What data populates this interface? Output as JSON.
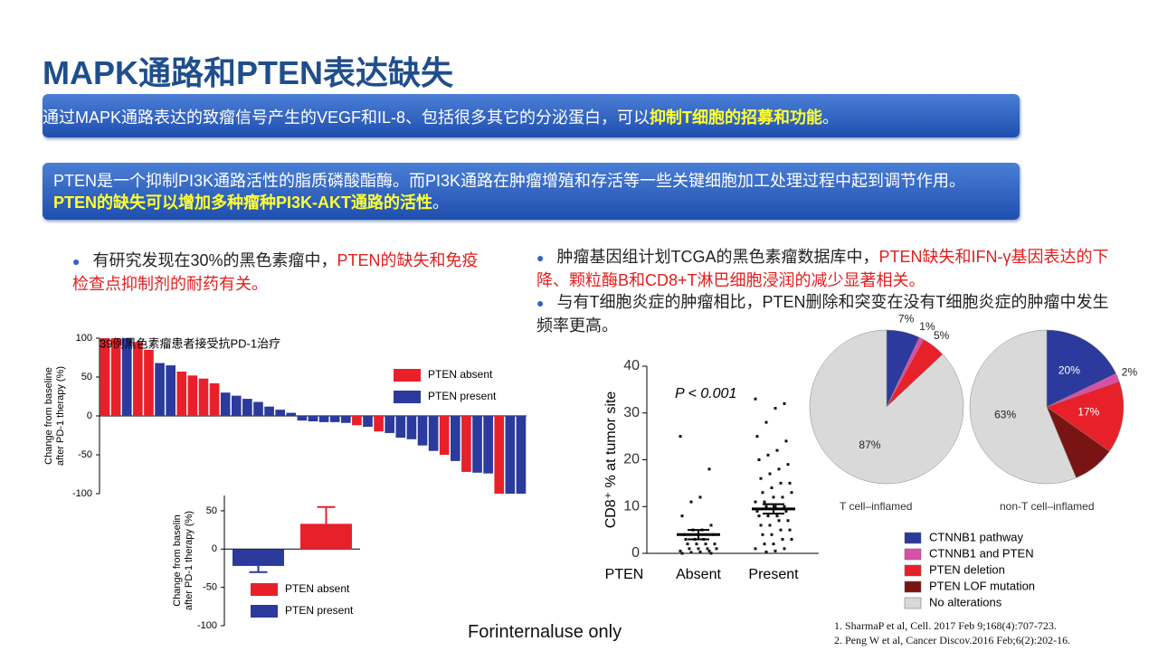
{
  "title": "MAPK通路和PTEN表达缺失",
  "boxes": [
    {
      "text": "通过MAPK通路表达的致瘤信号产生的VEGF和IL-8、包括很多其它的分泌蛋白，可以",
      "highlight": "抑制T细胞的招募和功能",
      "end": "。"
    },
    {
      "text": "PTEN是一个抑制PI3K通路活性的脂质磷酸酯酶。而PI3K通路在肿瘤增殖和存活等一些关键细胞加工处理过程中起到调节作用。",
      "highlight": "PTEN的缺失可以增加多种瘤种PI3K-AKT通路的活性",
      "end": "。"
    }
  ],
  "left_bullet": {
    "text": "有研究发现在30%的黑色素瘤中，",
    "highlight": "PTEN的缺失和免疫检查点抑制剂的耐药有关。"
  },
  "right_bullets": [
    {
      "text": "肿瘤基因组计划TCGA的黑色素瘤数据库中，",
      "highlight": "PTEN缺失和IFN-γ基因表达的下降、颗粒酶B和CD8+T淋巴细胞浸润的减少显著相关。"
    },
    {
      "text": "与有T细胞炎症的肿瘤相比，PTEN删除和突变在没有T细胞炎症的肿瘤中发生频率更高。"
    }
  ],
  "footer": "Forinternaluse only",
  "references": [
    "1. SharmaP et al, Cell. 2017 Feb 9;168(4):707-723.",
    "2. Peng W et al, Cancer Discov.2016 Feb;6(2):202-16."
  ],
  "chart_data": [
    {
      "type": "bar",
      "title": "39例黑色素瘤患者接受抗PD-1治疗",
      "y_label": [
        "Change from baseline",
        "after PD-1 therapy (%)"
      ],
      "categories": [
        null,
        null,
        null,
        null,
        null,
        null,
        null,
        null,
        null,
        null,
        null,
        null,
        null,
        null,
        null,
        null,
        null,
        null,
        null,
        null,
        null,
        null,
        null,
        null,
        null,
        null,
        null,
        null,
        null,
        null,
        null,
        null,
        null,
        null,
        null,
        null,
        null,
        null,
        null
      ],
      "series": [
        {
          "name": "PTEN absent",
          "color": "#e8202a",
          "values": [
            100,
            100,
            null,
            95,
            85,
            null,
            null,
            57,
            52,
            48,
            42,
            null,
            null,
            null,
            null,
            null,
            null,
            null,
            null,
            null,
            null,
            null,
            null,
            -12,
            null,
            -20,
            null,
            null,
            null,
            null,
            null,
            -50,
            null,
            -72,
            null,
            null,
            -100,
            null,
            null
          ]
        },
        {
          "name": "PTEN present",
          "color": "#2b3a9c",
          "values": [
            null,
            null,
            100,
            null,
            null,
            68,
            65,
            null,
            null,
            null,
            null,
            30,
            26,
            22,
            18,
            12,
            8,
            4,
            -6,
            -7,
            -8,
            -8,
            -9,
            null,
            -14,
            null,
            -22,
            -28,
            -30,
            -38,
            -45,
            null,
            -58,
            null,
            -73,
            -74,
            null,
            -100,
            -100
          ]
        }
      ],
      "ylim": [
        -100,
        100
      ],
      "yticks": [
        -100,
        -50,
        0,
        50,
        100
      ]
    },
    {
      "type": "bar",
      "y_label": [
        "Change from baselin",
        "after PD-1 therapy (%)"
      ],
      "categories": [
        null,
        null
      ],
      "series": [
        {
          "name": "PTEN absent",
          "color": "#e8202a",
          "values": [
            null,
            33
          ],
          "errors": [
            null,
            22
          ]
        },
        {
          "name": "PTEN present",
          "color": "#2b3a9c",
          "values": [
            -22,
            null
          ],
          "errors": [
            8,
            null
          ]
        }
      ],
      "ylim": [
        -100,
        70
      ],
      "yticks": [
        -100,
        -50,
        0,
        50
      ]
    },
    {
      "type": "dot",
      "x_label": "PTEN",
      "y_label": "CD8⁺ % at tumor site",
      "annotation": "P < 0.001",
      "categories": [
        "Absent",
        "Present"
      ],
      "points": [
        [
          25,
          18,
          12,
          11,
          8,
          6,
          5,
          5,
          4,
          4,
          3,
          3,
          3,
          2,
          2,
          2,
          2,
          1,
          1,
          1,
          1,
          0.5,
          0.5,
          0.3,
          0.2,
          0,
          0
        ],
        [
          33,
          32,
          31,
          28,
          25,
          24,
          22,
          21,
          20,
          19,
          18,
          17,
          16,
          15,
          15,
          14,
          13,
          13,
          12,
          12,
          11,
          11,
          10,
          10,
          10,
          9,
          9,
          8,
          8,
          8,
          7,
          7,
          6,
          6,
          5,
          5,
          4,
          4,
          3,
          3,
          2,
          2,
          1,
          1,
          0.5,
          0.3
        ]
      ],
      "means": [
        4,
        9.5
      ],
      "sem": [
        1,
        1
      ],
      "ylim": [
        0,
        40
      ],
      "yticks": [
        0,
        10,
        20,
        30,
        40
      ]
    },
    {
      "type": "pie",
      "categories": [
        "CTNNB1 pathway",
        "CTNNB1 and PTEN",
        "PTEN deletion",
        "PTEN LOF mutation",
        "No alterations"
      ],
      "colors": [
        "#2b3a9c",
        "#d94fa8",
        "#e8202a",
        "#7a1414",
        "#d9d9d9"
      ],
      "pies": [
        {
          "title": "T cell–inflamed",
          "values": [
            7,
            1,
            5,
            null,
            87
          ],
          "value_labels": [
            "7%",
            "1%",
            "5%",
            null,
            "87%"
          ]
        },
        {
          "title": "non-T cell–inflamed",
          "values": [
            20,
            2,
            17,
            10,
            63
          ],
          "value_labels": [
            "20%",
            "2%",
            "17%",
            null,
            "63%"
          ]
        }
      ]
    }
  ]
}
